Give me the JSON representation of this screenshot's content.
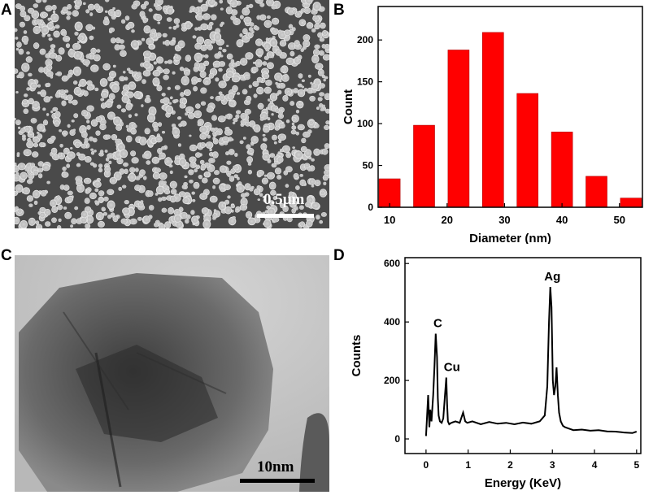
{
  "panels": {
    "a_letter": "A",
    "b_letter": "B",
    "c_letter": "C",
    "d_letter": "D"
  },
  "sem_image": {
    "scale_label": "0.5μm"
  },
  "tem_image": {
    "scale_label": "10nm"
  },
  "colors": {
    "bar_fill": "#ff0000",
    "axis": "#000000",
    "line": "#000000"
  },
  "chart_data": [
    {
      "type": "bar",
      "panel": "B",
      "xlabel": "Diameter (nm)",
      "ylabel": "Count",
      "x": [
        10,
        16,
        22,
        28,
        34,
        40,
        46,
        52
      ],
      "values": [
        34,
        98,
        188,
        209,
        136,
        90,
        37,
        11
      ],
      "xticks": [
        10,
        20,
        30,
        40,
        50
      ],
      "yticks": [
        0,
        50,
        100,
        150,
        200
      ],
      "xlim": [
        8,
        54
      ],
      "ylim": [
        0,
        240
      ],
      "grid": false
    },
    {
      "type": "line",
      "panel": "D",
      "xlabel": "Energy (KeV)",
      "ylabel": "Counts",
      "xticks": [
        0,
        1,
        2,
        3,
        4,
        5
      ],
      "yticks": [
        0,
        200,
        400,
        600
      ],
      "xlim": [
        -0.5,
        5.1
      ],
      "ylim": [
        -50,
        620
      ],
      "grid": false,
      "x": [
        0.0,
        0.05,
        0.08,
        0.1,
        0.13,
        0.17,
        0.2,
        0.23,
        0.26,
        0.28,
        0.3,
        0.33,
        0.37,
        0.41,
        0.45,
        0.48,
        0.5,
        0.52,
        0.55,
        0.6,
        0.7,
        0.8,
        0.88,
        0.93,
        0.98,
        1.1,
        1.3,
        1.5,
        1.7,
        1.9,
        2.1,
        2.3,
        2.5,
        2.7,
        2.82,
        2.88,
        2.92,
        2.95,
        2.98,
        3.01,
        3.04,
        3.07,
        3.1,
        3.13,
        3.16,
        3.2,
        3.25,
        3.3,
        3.4,
        3.5,
        3.7,
        3.9,
        4.1,
        4.3,
        4.5,
        4.7,
        4.9,
        5.0
      ],
      "y": [
        10,
        150,
        40,
        100,
        60,
        150,
        250,
        360,
        280,
        140,
        80,
        60,
        55,
        70,
        150,
        210,
        120,
        60,
        50,
        55,
        60,
        55,
        90,
        60,
        55,
        60,
        50,
        58,
        52,
        55,
        50,
        56,
        52,
        60,
        80,
        180,
        400,
        520,
        450,
        200,
        150,
        180,
        245,
        150,
        90,
        60,
        45,
        40,
        35,
        30,
        32,
        28,
        30,
        26,
        25,
        22,
        20,
        25
      ],
      "annotations": [
        {
          "text": "C",
          "x": 0.28,
          "y": 360
        },
        {
          "text": "Cu",
          "x": 0.5,
          "y": 210
        },
        {
          "text": "Ag",
          "x": 3.0,
          "y": 520
        }
      ]
    }
  ]
}
